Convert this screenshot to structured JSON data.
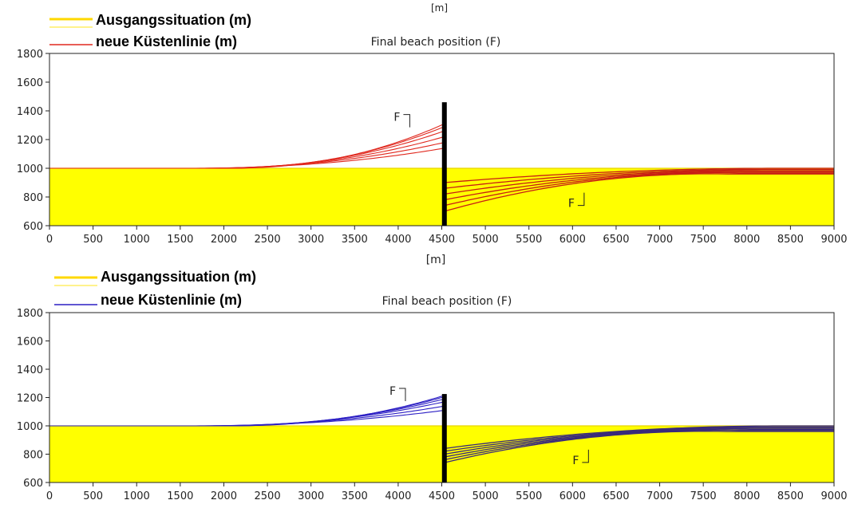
{
  "legend": {
    "initial_label": "Ausgangssituation (m)",
    "new_label": "neue Küstenlinie (m)"
  },
  "top_axis_unit_fragment": "[m]",
  "colors": {
    "fill": "#ffff00",
    "top_curves": "#e0281e",
    "top_curves_dense": "#c81e14",
    "bottom_curves": "#2c1fc4",
    "groyne": "#000000",
    "axis": "#222222"
  },
  "chart_data": [
    {
      "type": "line",
      "title": "Final beach position (F)",
      "xlabel": "[m]",
      "ylabel": "",
      "xlim": [
        0,
        9000
      ],
      "ylim": [
        600,
        1800
      ],
      "xticks": [
        0,
        500,
        1000,
        1500,
        2000,
        2500,
        3000,
        3500,
        4000,
        4500,
        5000,
        5500,
        6000,
        6500,
        7000,
        7500,
        8000,
        8500,
        9000
      ],
      "yticks": [
        600,
        800,
        1000,
        1200,
        1400,
        1600,
        1800
      ],
      "groyne_x": 4530,
      "initial_shoreline": 1000,
      "series": [
        {
          "up_at_groyne": 1140,
          "down_at_groyne": 900,
          "extent_m": 3000
        },
        {
          "up_at_groyne": 1180,
          "down_at_groyne": 860,
          "extent_m": 2900
        },
        {
          "up_at_groyne": 1220,
          "down_at_groyne": 820,
          "extent_m": 2800
        },
        {
          "up_at_groyne": 1260,
          "down_at_groyne": 780,
          "extent_m": 2700
        },
        {
          "up_at_groyne": 1290,
          "down_at_groyne": 740,
          "extent_m": 2600
        },
        {
          "up_at_groyne": 1310,
          "down_at_groyne": 700,
          "extent_m": 2500
        }
      ],
      "annotations": [
        {
          "text": "F",
          "x": 3950,
          "y": 1330,
          "side": "updrift"
        },
        {
          "text": "F",
          "x": 5950,
          "y": 730,
          "side": "downdrift"
        }
      ]
    },
    {
      "type": "line",
      "title": "Final beach position (F)",
      "xlabel": "",
      "ylabel": "",
      "xlim": [
        0,
        9000
      ],
      "ylim": [
        600,
        1800
      ],
      "xticks": [
        0,
        500,
        1000,
        1500,
        2000,
        2500,
        3000,
        3500,
        4000,
        4500,
        5000,
        5500,
        6000,
        6500,
        7000,
        7500,
        8000,
        8500,
        9000
      ],
      "yticks": [
        600,
        800,
        1000,
        1200,
        1400,
        1600,
        1800
      ],
      "groyne_x": 4530,
      "initial_shoreline": 1000,
      "series": [
        {
          "up_at_groyne": 1110,
          "down_at_groyne": 840,
          "extent_m": 3000
        },
        {
          "up_at_groyne": 1140,
          "down_at_groyne": 820,
          "extent_m": 2900
        },
        {
          "up_at_groyne": 1170,
          "down_at_groyne": 800,
          "extent_m": 2800
        },
        {
          "up_at_groyne": 1190,
          "down_at_groyne": 780,
          "extent_m": 2700
        },
        {
          "up_at_groyne": 1205,
          "down_at_groyne": 760,
          "extent_m": 2600
        },
        {
          "up_at_groyne": 1215,
          "down_at_groyne": 740,
          "extent_m": 2500
        }
      ],
      "annotations": [
        {
          "text": "F",
          "x": 3900,
          "y": 1220,
          "side": "updrift"
        },
        {
          "text": "F",
          "x": 6000,
          "y": 730,
          "side": "downdrift"
        }
      ]
    }
  ]
}
